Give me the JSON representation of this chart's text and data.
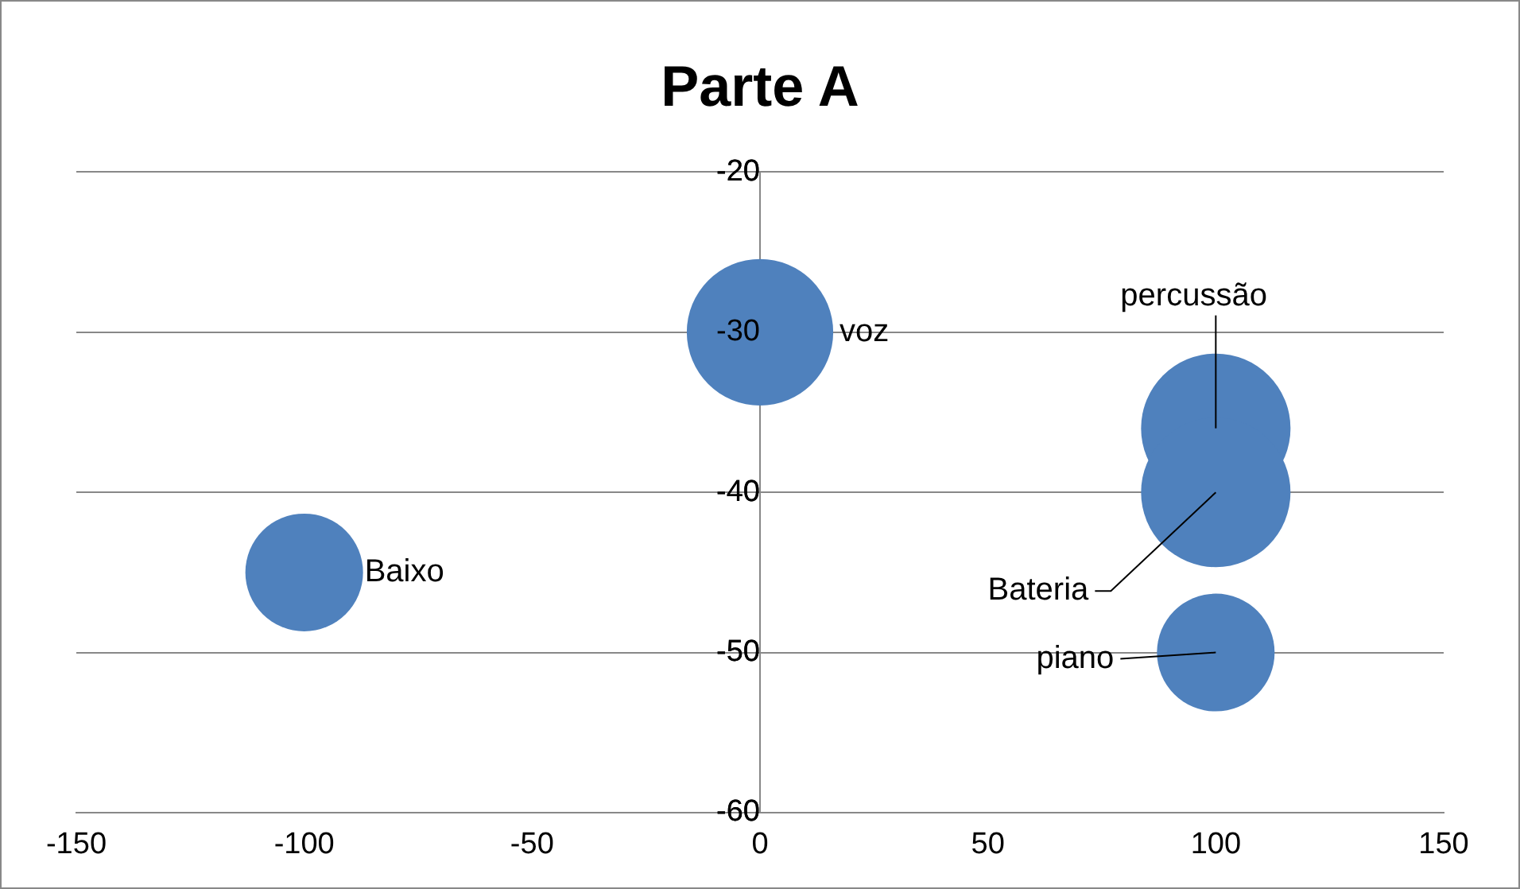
{
  "chart_data": {
    "type": "bubble",
    "title": "Parte A",
    "x": [
      -100,
      0,
      100,
      100,
      100
    ],
    "values": [
      -45,
      -30,
      -36,
      -40,
      -50
    ],
    "sizes": [
      0.62,
      0.96,
      1,
      1,
      0.62
    ],
    "color": "#4f81bd",
    "xlim": [
      -150,
      150
    ],
    "xticks": [
      -150,
      -100,
      -50,
      0,
      50,
      100,
      150
    ],
    "ylim": [
      -60,
      -20
    ],
    "yticks": [
      -60,
      -50,
      -40,
      -30,
      -20
    ],
    "grid": "y",
    "annotations": [
      {
        "text": "Baixo",
        "x": -100,
        "y": -45
      },
      {
        "text": "voz",
        "x": 0,
        "y": -30
      },
      {
        "text": "percussão",
        "x": 100,
        "y": -36
      },
      {
        "text": "Bateria",
        "x": 100,
        "y": -40
      },
      {
        "text": "piano",
        "x": 100,
        "y": -50
      }
    ]
  }
}
